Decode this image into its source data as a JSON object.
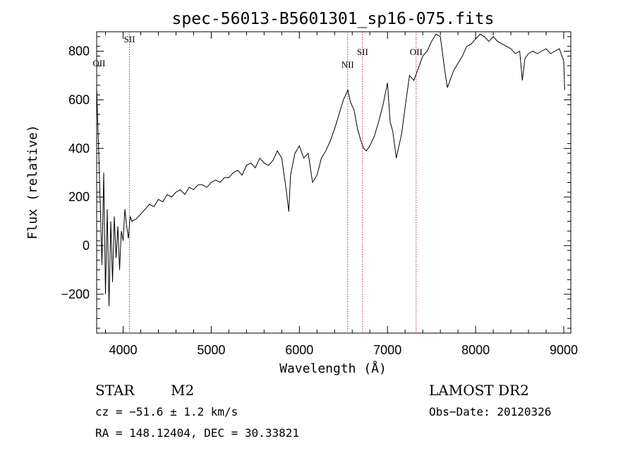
{
  "chart_data": {
    "type": "line",
    "title": "spec-56013-B5601301_sp16-075.fits",
    "xlabel": "Wavelength (Å)",
    "ylabel": "Flux (relative)",
    "xlim": [
      3700,
      9080
    ],
    "ylim": [
      -360,
      880
    ],
    "x_ticks": [
      4000,
      5000,
      6000,
      7000,
      8000,
      9000
    ],
    "y_ticks": [
      -200,
      0,
      200,
      400,
      600,
      800
    ],
    "x_tick_labels": [
      "4000",
      "5000",
      "6000",
      "7000",
      "8000",
      "9000"
    ],
    "y_tick_labels": [
      "−200",
      "0",
      "200",
      "400",
      "600",
      "800"
    ],
    "grid": false,
    "series": [
      {
        "x": [
          3700,
          3720,
          3740,
          3760,
          3780,
          3800,
          3820,
          3840,
          3860,
          3880,
          3900,
          3920,
          3940,
          3960,
          3980,
          4000,
          4020,
          4040,
          4060,
          4080,
          4100,
          4150,
          4200,
          4250,
          4300,
          4350,
          4400,
          4450,
          4500,
          4550,
          4600,
          4650,
          4700,
          4750,
          4800,
          4850,
          4900,
          4950,
          5000,
          5050,
          5100,
          5150,
          5200,
          5250,
          5300,
          5350,
          5400,
          5450,
          5500,
          5550,
          5600,
          5650,
          5700,
          5750,
          5800,
          5850,
          5880,
          5900,
          5950,
          6000,
          6050,
          6100,
          6150,
          6200,
          6250,
          6300,
          6350,
          6400,
          6450,
          6500,
          6550,
          6580,
          6620,
          6660,
          6700,
          6730,
          6760,
          6800,
          6850,
          6900,
          6950,
          7000,
          7030,
          7060,
          7100,
          7130,
          7160,
          7200,
          7250,
          7300,
          7350,
          7400,
          7450,
          7500,
          7550,
          7600,
          7650,
          7680,
          7720,
          7750,
          7800,
          7850,
          7900,
          7950,
          8000,
          8050,
          8100,
          8150,
          8200,
          8250,
          8300,
          8350,
          8400,
          8450,
          8500,
          8530,
          8560,
          8600,
          8650,
          8700,
          8750,
          8800,
          8850,
          8900,
          8950,
          9000,
          9010
        ],
        "y": [
          650,
          420,
          180,
          -80,
          300,
          -200,
          150,
          -250,
          100,
          -150,
          120,
          -50,
          80,
          -100,
          60,
          20,
          150,
          80,
          30,
          120,
          100,
          110,
          130,
          150,
          170,
          160,
          190,
          180,
          210,
          200,
          220,
          230,
          210,
          240,
          230,
          250,
          250,
          240,
          260,
          270,
          260,
          280,
          280,
          300,
          310,
          290,
          330,
          340,
          320,
          360,
          340,
          330,
          350,
          390,
          360,
          230,
          140,
          290,
          380,
          410,
          360,
          380,
          260,
          290,
          360,
          390,
          430,
          480,
          540,
          600,
          640,
          590,
          560,
          480,
          430,
          400,
          390,
          410,
          450,
          510,
          580,
          670,
          510,
          470,
          360,
          410,
          460,
          570,
          700,
          680,
          730,
          780,
          800,
          840,
          870,
          860,
          720,
          650,
          690,
          720,
          750,
          780,
          820,
          830,
          850,
          870,
          860,
          840,
          860,
          840,
          830,
          820,
          810,
          790,
          800,
          680,
          770,
          790,
          800,
          790,
          800,
          810,
          790,
          800,
          810,
          760,
          640
        ]
      }
    ],
    "annotations": [
      {
        "label": "OII",
        "wavelength": 3727
      },
      {
        "label": "SII",
        "wavelength": 4072
      },
      {
        "label": "NII",
        "wavelength": 6548
      },
      {
        "label": "SII",
        "wavelength": 6717
      },
      {
        "label": "OII",
        "wavelength": 7325
      }
    ]
  },
  "info": {
    "object_class": "STAR",
    "subclass": "M2",
    "survey": "LAMOST DR2",
    "cz": "cz = −51.6 ± 1.2 km/s",
    "obs_date": "Obs−Date: 20120326",
    "coords": "RA = 148.12404, DEC =  30.33821"
  }
}
